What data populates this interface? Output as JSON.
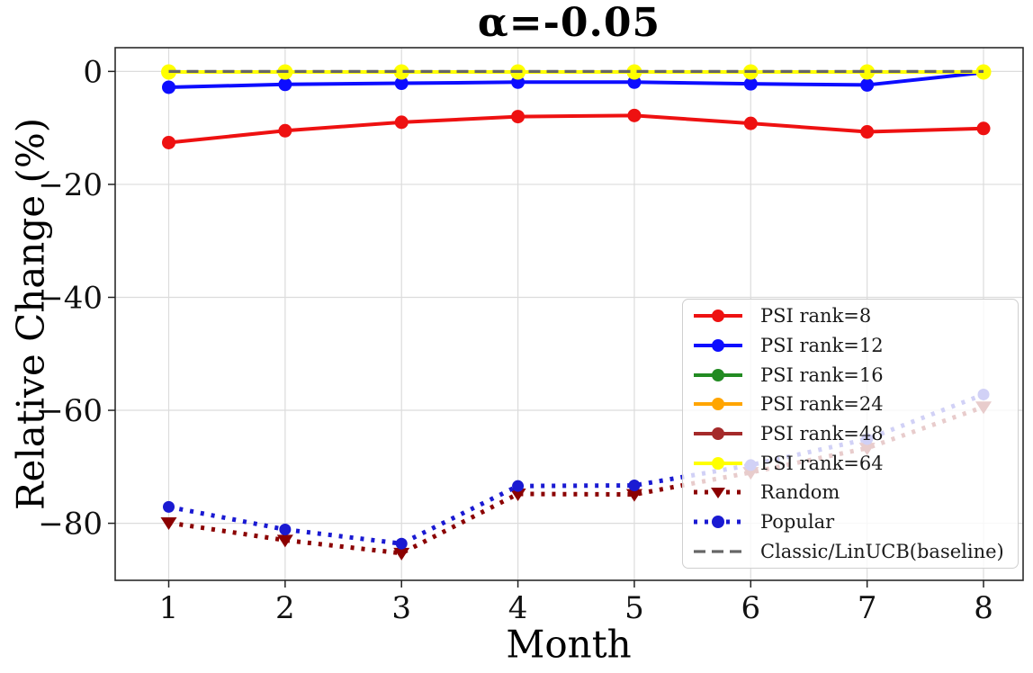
{
  "chart_data": {
    "type": "line",
    "title": "α=-0.05",
    "xlabel": "Month",
    "ylabel": "Relative Change (%)",
    "x": [
      1,
      2,
      3,
      4,
      5,
      6,
      7,
      8
    ],
    "x_tick_labels": [
      "1",
      "2",
      "3",
      "4",
      "5",
      "6",
      "7",
      "8"
    ],
    "y_ticks": [
      {
        "value": 0,
        "label": "0"
      },
      {
        "value": -20,
        "label": "−20"
      },
      {
        "value": -40,
        "label": "−40"
      },
      {
        "value": -60,
        "label": "−60"
      },
      {
        "value": -80,
        "label": "−80"
      }
    ],
    "xlim": [
      0.54,
      8.34
    ],
    "ylim": [
      -90.1,
      4.2
    ],
    "grid": true,
    "legend_position": "center right",
    "series": [
      {
        "name": "PSI rank=8",
        "color": "#ee1111",
        "line_style": "solid",
        "marker": "circle",
        "values": [
          -12.6,
          -10.5,
          -9.0,
          -8.0,
          -7.8,
          -9.2,
          -10.7,
          -10.1
        ]
      },
      {
        "name": "PSI rank=12",
        "color": "#0d0dff",
        "line_style": "solid",
        "marker": "circle",
        "values": [
          -2.8,
          -2.3,
          -2.1,
          -1.9,
          -1.9,
          -2.2,
          -2.4,
          -0.2
        ]
      },
      {
        "name": "PSI rank=16",
        "color": "#228b22",
        "line_style": "solid",
        "marker": "circle",
        "values": [
          -0.1,
          -0.1,
          -0.1,
          -0.1,
          -0.1,
          -0.1,
          -0.1,
          -0.1
        ]
      },
      {
        "name": "PSI rank=24",
        "color": "#ffa500",
        "line_style": "solid",
        "marker": "circle",
        "values": [
          -0.1,
          -0.1,
          -0.1,
          -0.1,
          -0.1,
          -0.1,
          -0.1,
          -0.1
        ]
      },
      {
        "name": "PSI rank=48",
        "color": "#a52a2a",
        "line_style": "solid",
        "marker": "circle",
        "values": [
          -0.1,
          -0.1,
          -0.1,
          -0.1,
          -0.1,
          -0.1,
          -0.1,
          -0.1
        ]
      },
      {
        "name": "PSI rank=64",
        "color": "#ffff00",
        "line_style": "solid",
        "marker": "circle",
        "values": [
          -0.1,
          -0.1,
          -0.1,
          -0.1,
          -0.1,
          -0.1,
          -0.1,
          -0.1
        ]
      },
      {
        "name": "Random",
        "color": "#8b0000",
        "line_style": "dotted",
        "marker": "triangle-down",
        "values": [
          -79.9,
          -83.0,
          -85.3,
          -74.8,
          -74.9,
          -71.0,
          -66.7,
          -59.4
        ]
      },
      {
        "name": "Popular",
        "color": "#1a1ad2",
        "line_style": "dotted",
        "marker": "circle",
        "values": [
          -77.1,
          -81.1,
          -83.6,
          -73.4,
          -73.3,
          -69.7,
          -65.1,
          -57.2
        ]
      },
      {
        "name": "Classic/LinUCB(baseline)",
        "color": "#666666",
        "line_style": "dashed",
        "marker": "none",
        "values": [
          0,
          0,
          0,
          0,
          0,
          0,
          0,
          0
        ]
      }
    ]
  }
}
